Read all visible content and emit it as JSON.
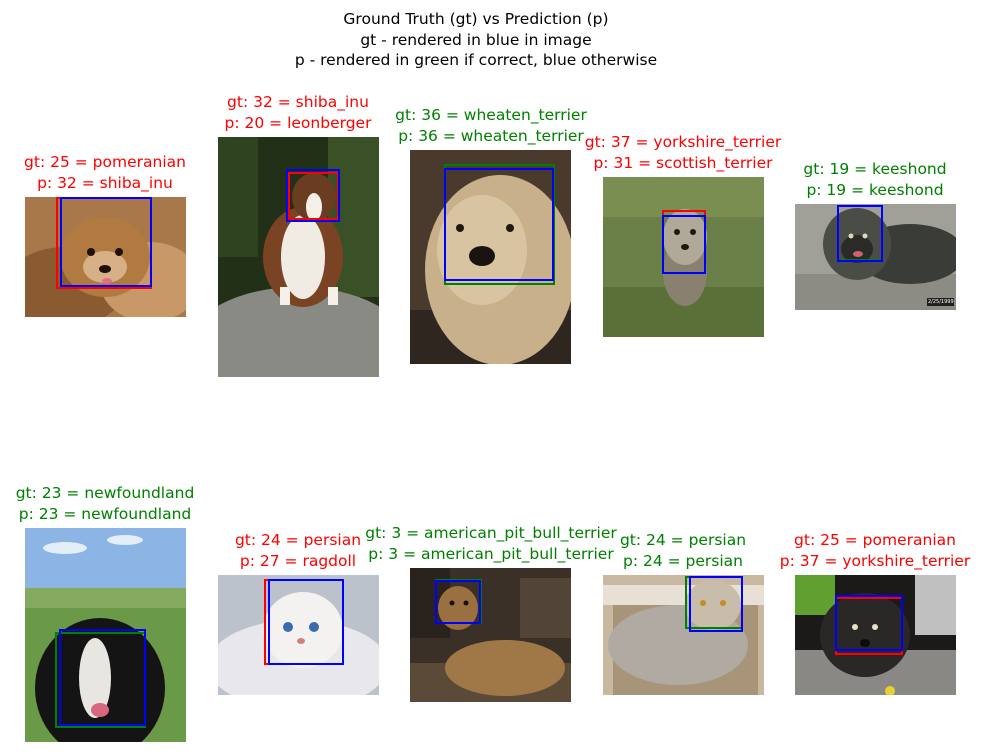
{
  "title": {
    "line1": "Ground Truth (gt) vs Prediction (p)",
    "line2": "gt - rendered in blue in image",
    "line3": "p - rendered in green if correct, blue otherwise"
  },
  "colors": {
    "correct": "#008000",
    "incorrect": "#ff0000",
    "box_blue": "#0000ff",
    "box_red": "#ff0000",
    "box_green": "#008000"
  },
  "panels": [
    {
      "gt": "gt: 25 = pomeranian",
      "p": "p: 32 = shiba_inu",
      "correct": false
    },
    {
      "gt": "gt: 32 = shiba_inu",
      "p": "p: 20 = leonberger",
      "correct": false
    },
    {
      "gt": "gt: 36 = wheaten_terrier",
      "p": "p: 36 = wheaten_terrier",
      "correct": true
    },
    {
      "gt": "gt: 37 = yorkshire_terrier",
      "p": "p: 31 = scottish_terrier",
      "correct": false
    },
    {
      "gt": "gt: 19 = keeshond",
      "p": "p: 19 = keeshond",
      "correct": true
    },
    {
      "gt": "gt: 23 = newfoundland",
      "p": "p: 23 = newfoundland",
      "correct": true
    },
    {
      "gt": "gt: 24 = persian",
      "p": "p: 27 = ragdoll",
      "correct": false
    },
    {
      "gt": "gt: 3 = american_pit_bull_terrier",
      "p": "p: 3 = american_pit_bull_terrier",
      "correct": true
    },
    {
      "gt": "gt: 24 = persian",
      "p": "p: 24 = persian",
      "correct": true
    },
    {
      "gt": "gt: 25 = pomeranian",
      "p": "p: 37 = yorkshire_terrier",
      "correct": false
    }
  ],
  "image_stamp": "2/25/1999"
}
